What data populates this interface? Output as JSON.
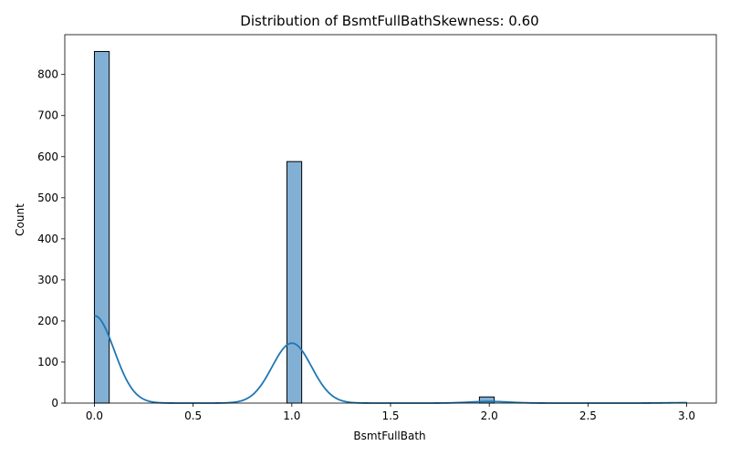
{
  "chart_data": {
    "type": "bar",
    "title": "Distribution of BsmtFullBathSkewness: 0.60",
    "xlabel": "BsmtFullBath",
    "ylabel": "Count",
    "xlim": [
      -0.15,
      3.15
    ],
    "ylim": [
      0,
      897
    ],
    "grid": false,
    "legend": "none",
    "x_ticks": [
      {
        "value": 0.0,
        "label": "0.0"
      },
      {
        "value": 0.5,
        "label": "0.5"
      },
      {
        "value": 1.0,
        "label": "1.0"
      },
      {
        "value": 1.5,
        "label": "1.5"
      },
      {
        "value": 2.0,
        "label": "2.0"
      },
      {
        "value": 2.5,
        "label": "2.5"
      },
      {
        "value": 3.0,
        "label": "3.0"
      }
    ],
    "y_ticks": [
      {
        "value": 0,
        "label": "0"
      },
      {
        "value": 100,
        "label": "100"
      },
      {
        "value": 200,
        "label": "200"
      },
      {
        "value": 300,
        "label": "300"
      },
      {
        "value": 400,
        "label": "400"
      },
      {
        "value": 500,
        "label": "500"
      },
      {
        "value": 600,
        "label": "600"
      },
      {
        "value": 700,
        "label": "700"
      },
      {
        "value": 800,
        "label": "800"
      }
    ],
    "bins": [
      {
        "x0": 0.0,
        "x1": 0.075,
        "count": 856
      },
      {
        "x0": 0.975,
        "x1": 1.05,
        "count": 588
      },
      {
        "x0": 1.95,
        "x1": 2.025,
        "count": 15
      },
      {
        "x0": 2.925,
        "x1": 3.0,
        "count": 1
      }
    ],
    "kde": {
      "color": "#1f77b4",
      "components": [
        {
          "mean": 0.0,
          "weight": 213,
          "sd": 0.1
        },
        {
          "mean": 1.0,
          "weight": 146,
          "sd": 0.1
        },
        {
          "mean": 2.0,
          "weight": 4,
          "sd": 0.1
        },
        {
          "mean": 3.0,
          "weight": 1,
          "sd": 0.1
        }
      ]
    },
    "colors": {
      "bar_fill": "#82b0d5",
      "bar_edge": "#000000",
      "kde": "#1f77b4"
    }
  }
}
